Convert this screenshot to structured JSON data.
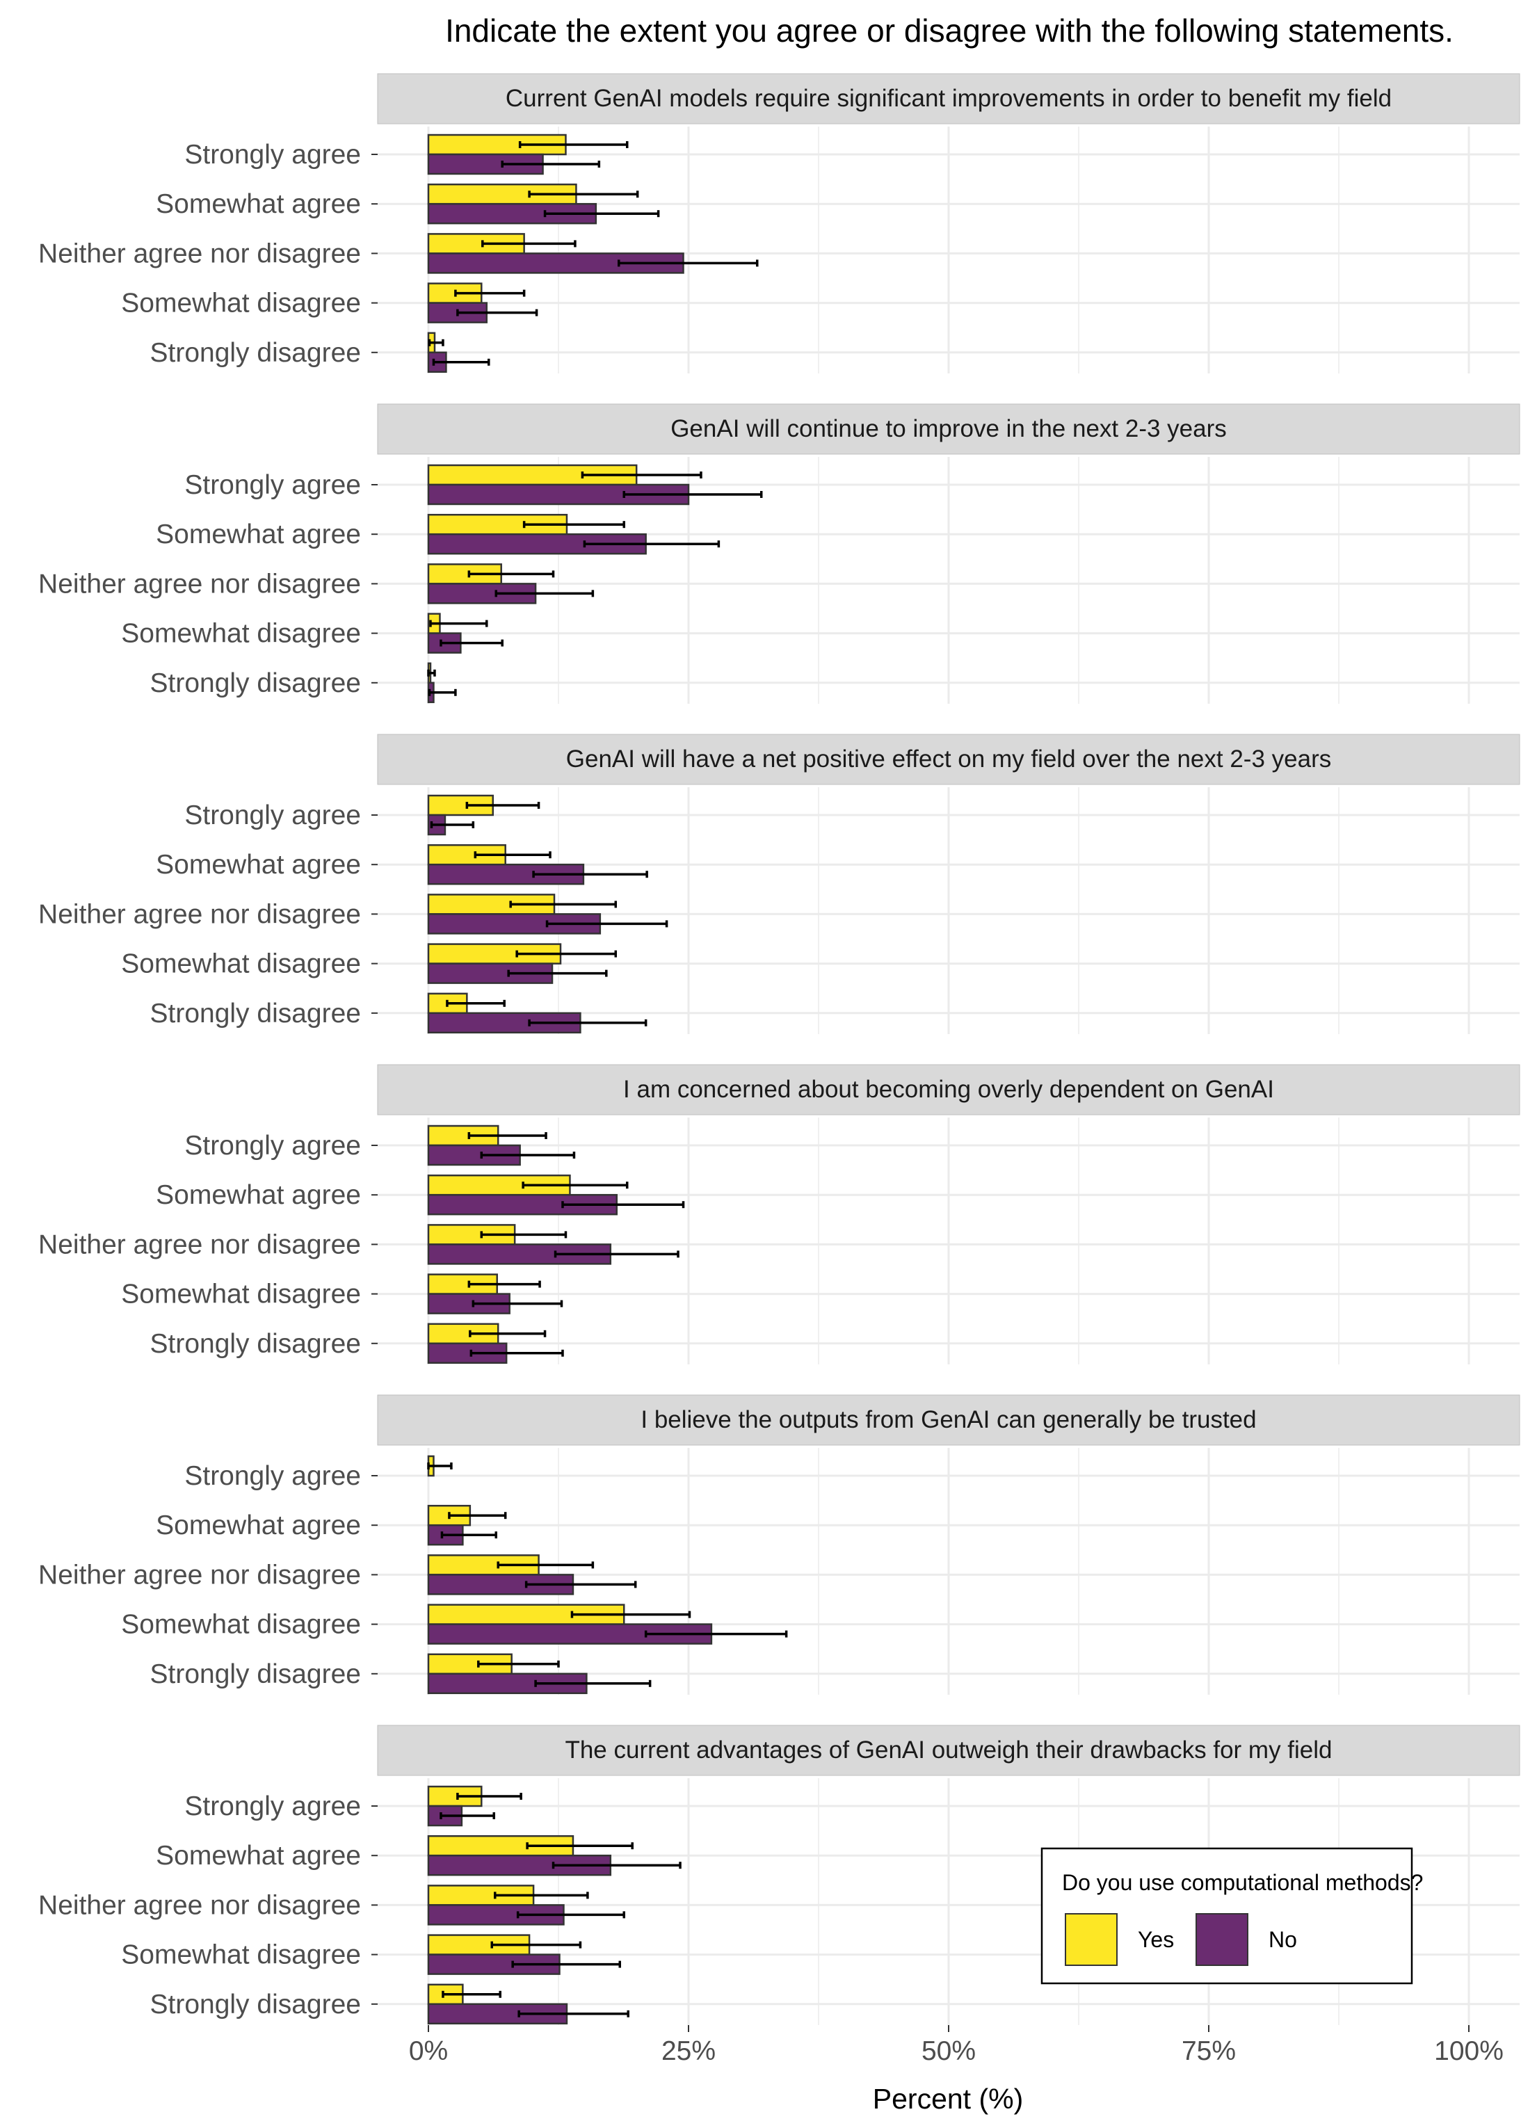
{
  "chart_data": {
    "type": "bar",
    "orientation": "horizontal",
    "title": "Indicate the extent you agree or disagree with the following statements.",
    "xlabel": "Percent (%)",
    "ylabel": "",
    "xlim": [
      0,
      100
    ],
    "x_ticks": [
      "0%",
      "25%",
      "50%",
      "75%",
      "100%"
    ],
    "x_tick_values": [
      0,
      25,
      50,
      75,
      100
    ],
    "grid": true,
    "error_bars": true,
    "categories": [
      "Strongly agree",
      "Somewhat agree",
      "Neither agree nor disagree",
      "Somewhat disagree",
      "Strongly disagree"
    ],
    "legend": {
      "title": "Do you use computational methods?",
      "position": "bottom-right",
      "entries": [
        {
          "label": "Yes",
          "color": "#fde725"
        },
        {
          "label": "No",
          "color": "#6a2c70"
        }
      ]
    },
    "colors": {
      "Yes": "#fde725",
      "No": "#6a2c70"
    },
    "panels": [
      {
        "title": "Current GenAI models require significant improvements in order to benefit my field",
        "series": [
          {
            "name": "Yes",
            "values": [
              13.2,
              14.2,
              9.2,
              5.1,
              0.6
            ],
            "err_low": [
              8.8,
              9.7,
              5.2,
              2.6,
              0.1
            ],
            "err_high": [
              19.1,
              20.1,
              14.1,
              9.2,
              1.4
            ]
          },
          {
            "name": "No",
            "values": [
              11.0,
              16.1,
              24.5,
              5.6,
              1.7
            ],
            "err_low": [
              7.1,
              11.2,
              18.3,
              2.8,
              0.5
            ],
            "err_high": [
              16.4,
              22.1,
              31.6,
              10.4,
              5.8
            ]
          }
        ]
      },
      {
        "title": "GenAI will continue to improve in the next 2-3 years",
        "series": [
          {
            "name": "Yes",
            "values": [
              20.0,
              13.3,
              7.0,
              1.1,
              0.2
            ],
            "err_low": [
              14.8,
              9.2,
              3.9,
              0.2,
              0.0
            ],
            "err_high": [
              26.2,
              18.8,
              12.0,
              5.6,
              0.6
            ]
          },
          {
            "name": "No",
            "values": [
              25.0,
              20.9,
              10.3,
              3.1,
              0.5
            ],
            "err_low": [
              18.8,
              15.0,
              6.5,
              1.2,
              0.1
            ],
            "err_high": [
              32.0,
              27.9,
              15.8,
              7.1,
              2.6
            ]
          }
        ]
      },
      {
        "title": "GenAI will have a net positive effect on my field over the next 2-3 years",
        "series": [
          {
            "name": "Yes",
            "values": [
              6.2,
              7.4,
              12.1,
              12.7,
              3.7
            ],
            "err_low": [
              3.7,
              4.5,
              7.9,
              8.5,
              1.8
            ],
            "err_high": [
              10.6,
              11.7,
              18.0,
              18.0,
              7.3
            ]
          },
          {
            "name": "No",
            "values": [
              1.6,
              14.9,
              16.5,
              11.9,
              14.6
            ],
            "err_low": [
              0.3,
              10.1,
              11.4,
              7.7,
              9.7
            ],
            "err_high": [
              4.3,
              21.0,
              22.9,
              17.1,
              20.9
            ]
          }
        ]
      },
      {
        "title": "I am concerned about becoming overly dependent on GenAI",
        "series": [
          {
            "name": "Yes",
            "values": [
              6.7,
              13.6,
              8.3,
              6.6,
              6.7
            ],
            "err_low": [
              3.9,
              9.1,
              5.1,
              3.9,
              4.0
            ],
            "err_high": [
              11.3,
              19.1,
              13.2,
              10.7,
              11.2
            ]
          },
          {
            "name": "No",
            "values": [
              8.8,
              18.1,
              17.5,
              7.8,
              7.5
            ],
            "err_low": [
              5.1,
              12.9,
              12.2,
              4.3,
              4.1
            ],
            "err_high": [
              14.0,
              24.5,
              24.0,
              12.8,
              12.9
            ]
          }
        ]
      },
      {
        "title": "I believe the outputs from GenAI can generally be trusted",
        "series": [
          {
            "name": "Yes",
            "values": [
              0.5,
              4.0,
              10.6,
              18.8,
              8.0
            ],
            "err_low": [
              0.0,
              2.0,
              6.7,
              13.8,
              4.8
            ],
            "err_high": [
              2.2,
              7.4,
              15.8,
              25.1,
              12.5
            ]
          },
          {
            "name": "No",
            "values": [
              0.0,
              3.3,
              13.9,
              27.2,
              15.2
            ],
            "err_low": [
              0.0,
              1.3,
              9.4,
              20.9,
              10.3
            ],
            "err_high": [
              0.0,
              6.5,
              19.9,
              34.4,
              21.3
            ]
          }
        ]
      },
      {
        "title": "The current advantages of GenAI outweigh their drawbacks for my field",
        "series": [
          {
            "name": "Yes",
            "values": [
              5.1,
              13.9,
              10.1,
              9.7,
              3.3
            ],
            "err_low": [
              2.8,
              9.5,
              6.4,
              6.1,
              1.4
            ],
            "err_high": [
              8.9,
              19.6,
              15.3,
              14.6,
              6.9
            ]
          },
          {
            "name": "No",
            "values": [
              3.2,
              17.5,
              13.0,
              12.6,
              13.3
            ],
            "err_low": [
              1.2,
              12.0,
              8.6,
              8.1,
              8.7
            ],
            "err_high": [
              6.3,
              24.2,
              18.8,
              18.4,
              19.2
            ]
          }
        ]
      }
    ]
  }
}
